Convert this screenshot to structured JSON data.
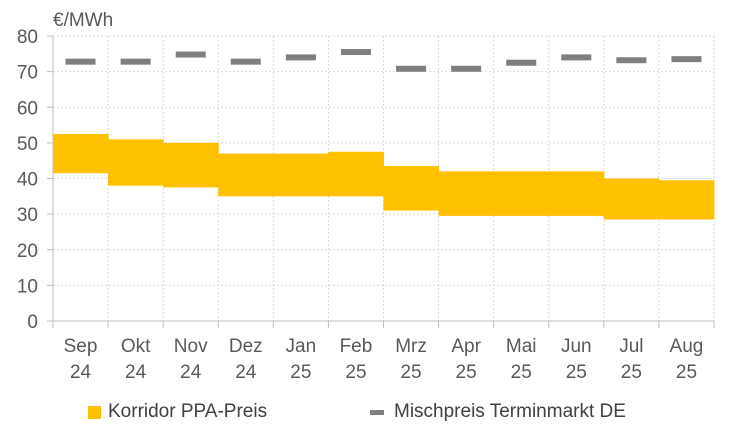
{
  "chart_data": {
    "type": "bar",
    "unit_label": "€/MWh",
    "ylim": [
      0,
      80
    ],
    "yticks": [
      "0",
      "10",
      "20",
      "30",
      "40",
      "50",
      "60",
      "70",
      "80"
    ],
    "grid": true,
    "legend_position": "bottom",
    "categories": [
      [
        "Sep",
        "24"
      ],
      [
        "Okt",
        "24"
      ],
      [
        "Nov",
        "24"
      ],
      [
        "Dez",
        "24"
      ],
      [
        "Jan",
        "25"
      ],
      [
        "Feb",
        "25"
      ],
      [
        "Mrz",
        "25"
      ],
      [
        "Apr",
        "25"
      ],
      [
        "Mai",
        "25"
      ],
      [
        "Jun",
        "25"
      ],
      [
        "Jul",
        "25"
      ],
      [
        "Aug",
        "25"
      ]
    ],
    "series": [
      {
        "name": "Korridor PPA-Preis",
        "kind": "range",
        "color": "#ffc000",
        "low": [
          41.5,
          38.0,
          37.5,
          35.0,
          35.0,
          35.0,
          31.0,
          29.5,
          29.5,
          29.5,
          28.5,
          28.5
        ],
        "high": [
          52.5,
          51.0,
          50.0,
          47.0,
          47.0,
          47.5,
          43.5,
          42.0,
          42.0,
          42.0,
          40.0,
          39.5
        ]
      },
      {
        "name": "Mischpreis Terminmarkt DE",
        "kind": "marker",
        "color": "#7f7f7f",
        "values": [
          72.8,
          72.8,
          74.8,
          72.8,
          74.0,
          75.5,
          70.8,
          70.8,
          72.5,
          74.0,
          73.2,
          73.5
        ]
      }
    ]
  },
  "legend": {
    "corridor_label": "Korridor PPA-Preis",
    "mix_label": "Mischpreis Terminmarkt DE"
  }
}
